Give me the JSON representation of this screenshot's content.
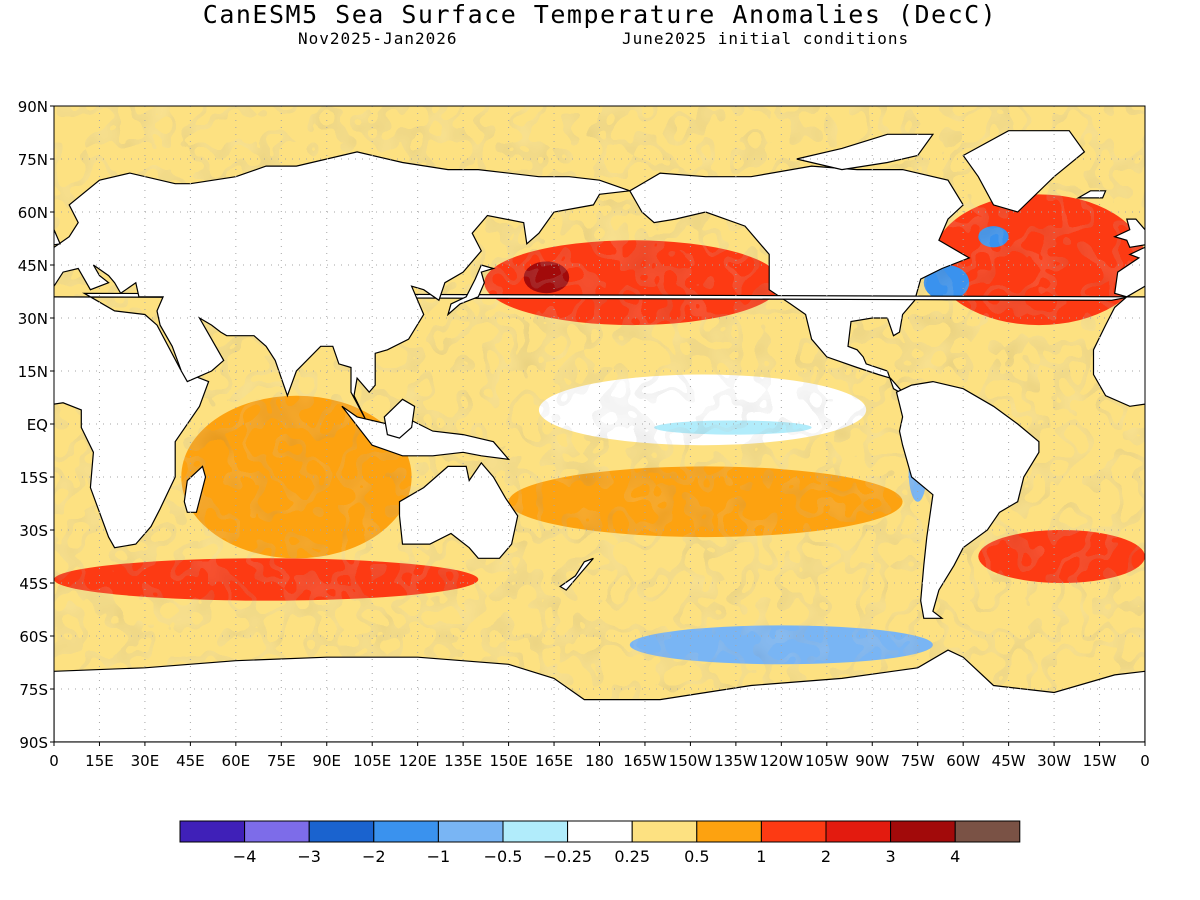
{
  "title": "CanESM5 Sea Surface Temperature Anomalies (DecC)",
  "subtitle_left": "Nov2025-Jan2026",
  "subtitle_right": "June2025 initial conditions",
  "colors": {
    "ocean_default": "#fde181",
    "land": "#ffffff",
    "coastline": "#000000",
    "grid": "#a6a6a6"
  },
  "chart_data": {
    "type": "heatmap",
    "projection": "equirectangular",
    "lon_range": [
      0,
      360
    ],
    "lat_range": [
      -90,
      90
    ],
    "grid": true,
    "lat_ticks": [
      {
        "v": 90,
        "t": "90N"
      },
      {
        "v": 75,
        "t": "75N"
      },
      {
        "v": 60,
        "t": "60N"
      },
      {
        "v": 45,
        "t": "45N"
      },
      {
        "v": 30,
        "t": "30N"
      },
      {
        "v": 15,
        "t": "15N"
      },
      {
        "v": 0,
        "t": "EQ"
      },
      {
        "v": -15,
        "t": "15S"
      },
      {
        "v": -30,
        "t": "30S"
      },
      {
        "v": -45,
        "t": "45S"
      },
      {
        "v": -60,
        "t": "60S"
      },
      {
        "v": -75,
        "t": "75S"
      },
      {
        "v": -90,
        "t": "90S"
      }
    ],
    "lon_ticks": [
      {
        "v": 0,
        "t": "0"
      },
      {
        "v": 15,
        "t": "15E"
      },
      {
        "v": 30,
        "t": "30E"
      },
      {
        "v": 45,
        "t": "45E"
      },
      {
        "v": 60,
        "t": "60E"
      },
      {
        "v": 75,
        "t": "75E"
      },
      {
        "v": 90,
        "t": "90E"
      },
      {
        "v": 105,
        "t": "105E"
      },
      {
        "v": 120,
        "t": "120E"
      },
      {
        "v": 135,
        "t": "135E"
      },
      {
        "v": 150,
        "t": "150E"
      },
      {
        "v": 165,
        "t": "165E"
      },
      {
        "v": 180,
        "t": "180"
      },
      {
        "v": 195,
        "t": "165W"
      },
      {
        "v": 210,
        "t": "150W"
      },
      {
        "v": 225,
        "t": "135W"
      },
      {
        "v": 240,
        "t": "120W"
      },
      {
        "v": 255,
        "t": "105W"
      },
      {
        "v": 270,
        "t": "90W"
      },
      {
        "v": 285,
        "t": "75W"
      },
      {
        "v": 300,
        "t": "60W"
      },
      {
        "v": 315,
        "t": "45W"
      },
      {
        "v": 330,
        "t": "30W"
      },
      {
        "v": 345,
        "t": "15W"
      },
      {
        "v": 360,
        "t": "0"
      }
    ],
    "colorbar": {
      "colors": [
        "#3f20b8",
        "#7d6ce9",
        "#1a63cf",
        "#3a92ee",
        "#79b5f4",
        "#b1ecfb",
        "#ffffff",
        "#fde181",
        "#fda210",
        "#fd3a13",
        "#e31b0f",
        "#a20a0a",
        "#7a5245"
      ],
      "labels": [
        "−4",
        "−3",
        "−2",
        "−1",
        "−0.5",
        "−0.25",
        "0.25",
        "0.5",
        "1",
        "2",
        "3",
        "4"
      ]
    },
    "anomaly_regions": [
      {
        "name": "southern-ocean-belt",
        "lon": [
          0,
          360
        ],
        "lat": [
          -70,
          -56
        ],
        "value": 0.3
      },
      {
        "name": "equatorial-pacific-cool",
        "lon": [
          160,
          268
        ],
        "lat": [
          -6,
          14
        ],
        "value": 0.0
      },
      {
        "name": "nino-cool-tongue",
        "lon": [
          198,
          250
        ],
        "lat": [
          -3,
          1
        ],
        "value": -0.3
      },
      {
        "name": "indian-ocean",
        "lon": [
          42,
          118
        ],
        "lat": [
          -38,
          8
        ],
        "value": 0.8
      },
      {
        "name": "south-pacific-band",
        "lon": [
          150,
          280
        ],
        "lat": [
          -32,
          -12
        ],
        "value": 0.8
      },
      {
        "name": "kuroshio-extension",
        "lon": [
          142,
          240
        ],
        "lat": [
          28,
          52
        ],
        "value": 1.2
      },
      {
        "name": "north-pacific-hotspot",
        "lon": [
          155,
          170
        ],
        "lat": [
          37,
          46
        ],
        "value": 3.2
      },
      {
        "name": "north-atlantic",
        "lon": [
          290,
          360
        ],
        "lat": [
          28,
          65
        ],
        "value": 1.3
      },
      {
        "name": "gulf-stream-cool",
        "lon": [
          287,
          302
        ],
        "lat": [
          35,
          45
        ],
        "value": -1.5
      },
      {
        "name": "labrador-cool",
        "lon": [
          305,
          315
        ],
        "lat": [
          50,
          56
        ],
        "value": -1.4
      },
      {
        "name": "southern-midlat-warm",
        "lon": [
          0,
          140
        ],
        "lat": [
          -50,
          -38
        ],
        "value": 1.1
      },
      {
        "name": "south-atlantic-warm",
        "lon": [
          305,
          360
        ],
        "lat": [
          -45,
          -30
        ],
        "value": 1.2
      },
      {
        "name": "peru-coast-cool",
        "lon": [
          282,
          288
        ],
        "lat": [
          -22,
          -5
        ],
        "value": -1.0
      },
      {
        "name": "ross-sea-cool",
        "lon": [
          190,
          290
        ],
        "lat": [
          -68,
          -57
        ],
        "value": -1.0
      }
    ]
  }
}
